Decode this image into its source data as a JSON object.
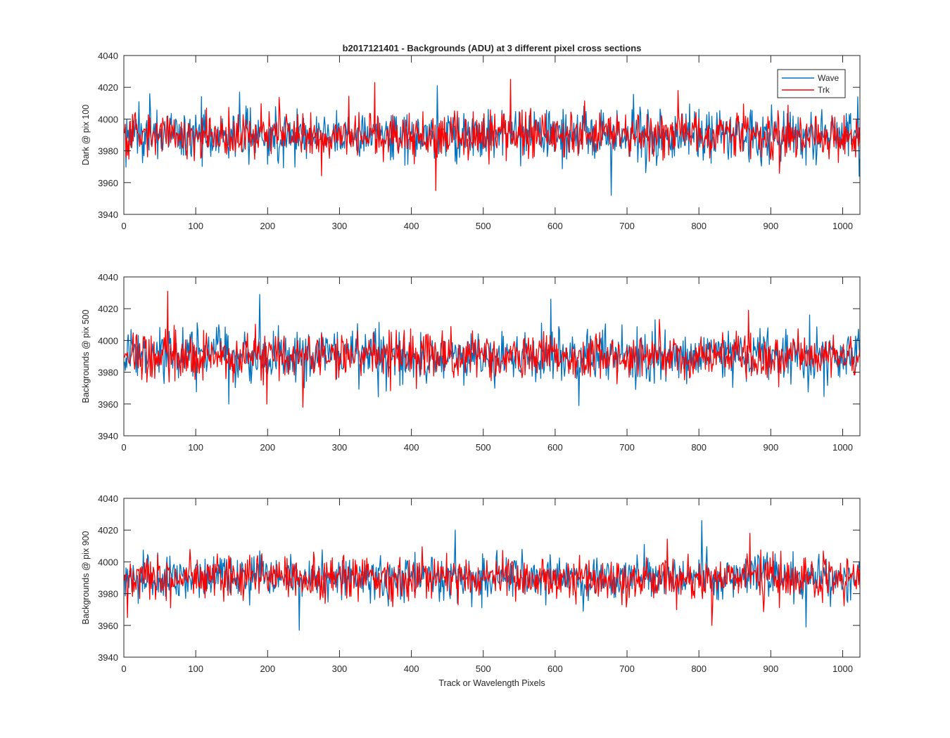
{
  "figure": {
    "title": "b2017121401 - Backgrounds (ADU) at 3 different pixel cross sections",
    "xlabel": "Track or Wavelength Pixels"
  },
  "colors": {
    "wave": "#0072BD",
    "trk": "#FF0000",
    "axes": "#262626"
  },
  "chart_data": [
    {
      "type": "line",
      "ylabel": "Dark @ pix 100",
      "xlim": [
        0,
        1024
      ],
      "ylim": [
        3940,
        4040
      ],
      "xticks": [
        0,
        100,
        200,
        300,
        400,
        500,
        600,
        700,
        800,
        900,
        1000
      ],
      "yticks": [
        3940,
        3960,
        3980,
        4000,
        4020,
        4040
      ],
      "legend": {
        "position": "top-right",
        "entries": [
          "Wave",
          "Trk"
        ]
      },
      "series": [
        {
          "name": "Wave",
          "color": "#0072BD",
          "mean": 3990,
          "noise_sd": 8,
          "spikes": [
            [
              35,
              4016
            ],
            [
              160,
              4017
            ],
            [
              435,
              4021
            ],
            [
              677,
              3952
            ],
            [
              1020,
              4014
            ]
          ]
        },
        {
          "name": "Trk",
          "color": "#FF0000",
          "mean": 3990,
          "noise_sd": 7,
          "spikes": [
            [
              60,
              4002
            ],
            [
              348,
              4023
            ],
            [
              433,
              3955
            ],
            [
              537,
              4025
            ],
            [
              770,
              4018
            ]
          ]
        }
      ]
    },
    {
      "type": "line",
      "ylabel": "Backgrounds @ pix 500",
      "xlim": [
        0,
        1024
      ],
      "ylim": [
        3940,
        4040
      ],
      "xticks": [
        0,
        100,
        200,
        300,
        400,
        500,
        600,
        700,
        800,
        900,
        1000
      ],
      "yticks": [
        3940,
        3960,
        3980,
        4000,
        4020,
        4040
      ],
      "series": [
        {
          "name": "Wave",
          "color": "#0072BD",
          "mean": 3990,
          "noise_sd": 8,
          "spikes": [
            [
              188,
              4029
            ],
            [
              145,
              3960
            ],
            [
              593,
              4026
            ],
            [
              632,
              3959
            ]
          ]
        },
        {
          "name": "Trk",
          "color": "#FF0000",
          "mean": 3990,
          "noise_sd": 7,
          "spikes": [
            [
              60,
              4031
            ],
            [
              198,
              3960
            ],
            [
              248,
              3958
            ],
            [
              868,
              4019
            ]
          ]
        }
      ]
    },
    {
      "type": "line",
      "ylabel": "Backgrounds @ pix 900",
      "xlim": [
        0,
        1024
      ],
      "ylim": [
        3940,
        4040
      ],
      "xticks": [
        0,
        100,
        200,
        300,
        400,
        500,
        600,
        700,
        800,
        900,
        1000
      ],
      "yticks": [
        3940,
        3960,
        3980,
        4000,
        4020,
        4040
      ],
      "series": [
        {
          "name": "Wave",
          "color": "#0072BD",
          "mean": 3990,
          "noise_sd": 7,
          "spikes": [
            [
              243,
              3957
            ],
            [
              460,
              4020
            ],
            [
              803,
              4026
            ],
            [
              948,
              3959
            ]
          ]
        },
        {
          "name": "Trk",
          "color": "#FF0000",
          "mean": 3990,
          "noise_sd": 7,
          "spikes": [
            [
              4,
              3965
            ],
            [
              817,
              3960
            ],
            [
              870,
              4018
            ]
          ]
        }
      ]
    }
  ]
}
